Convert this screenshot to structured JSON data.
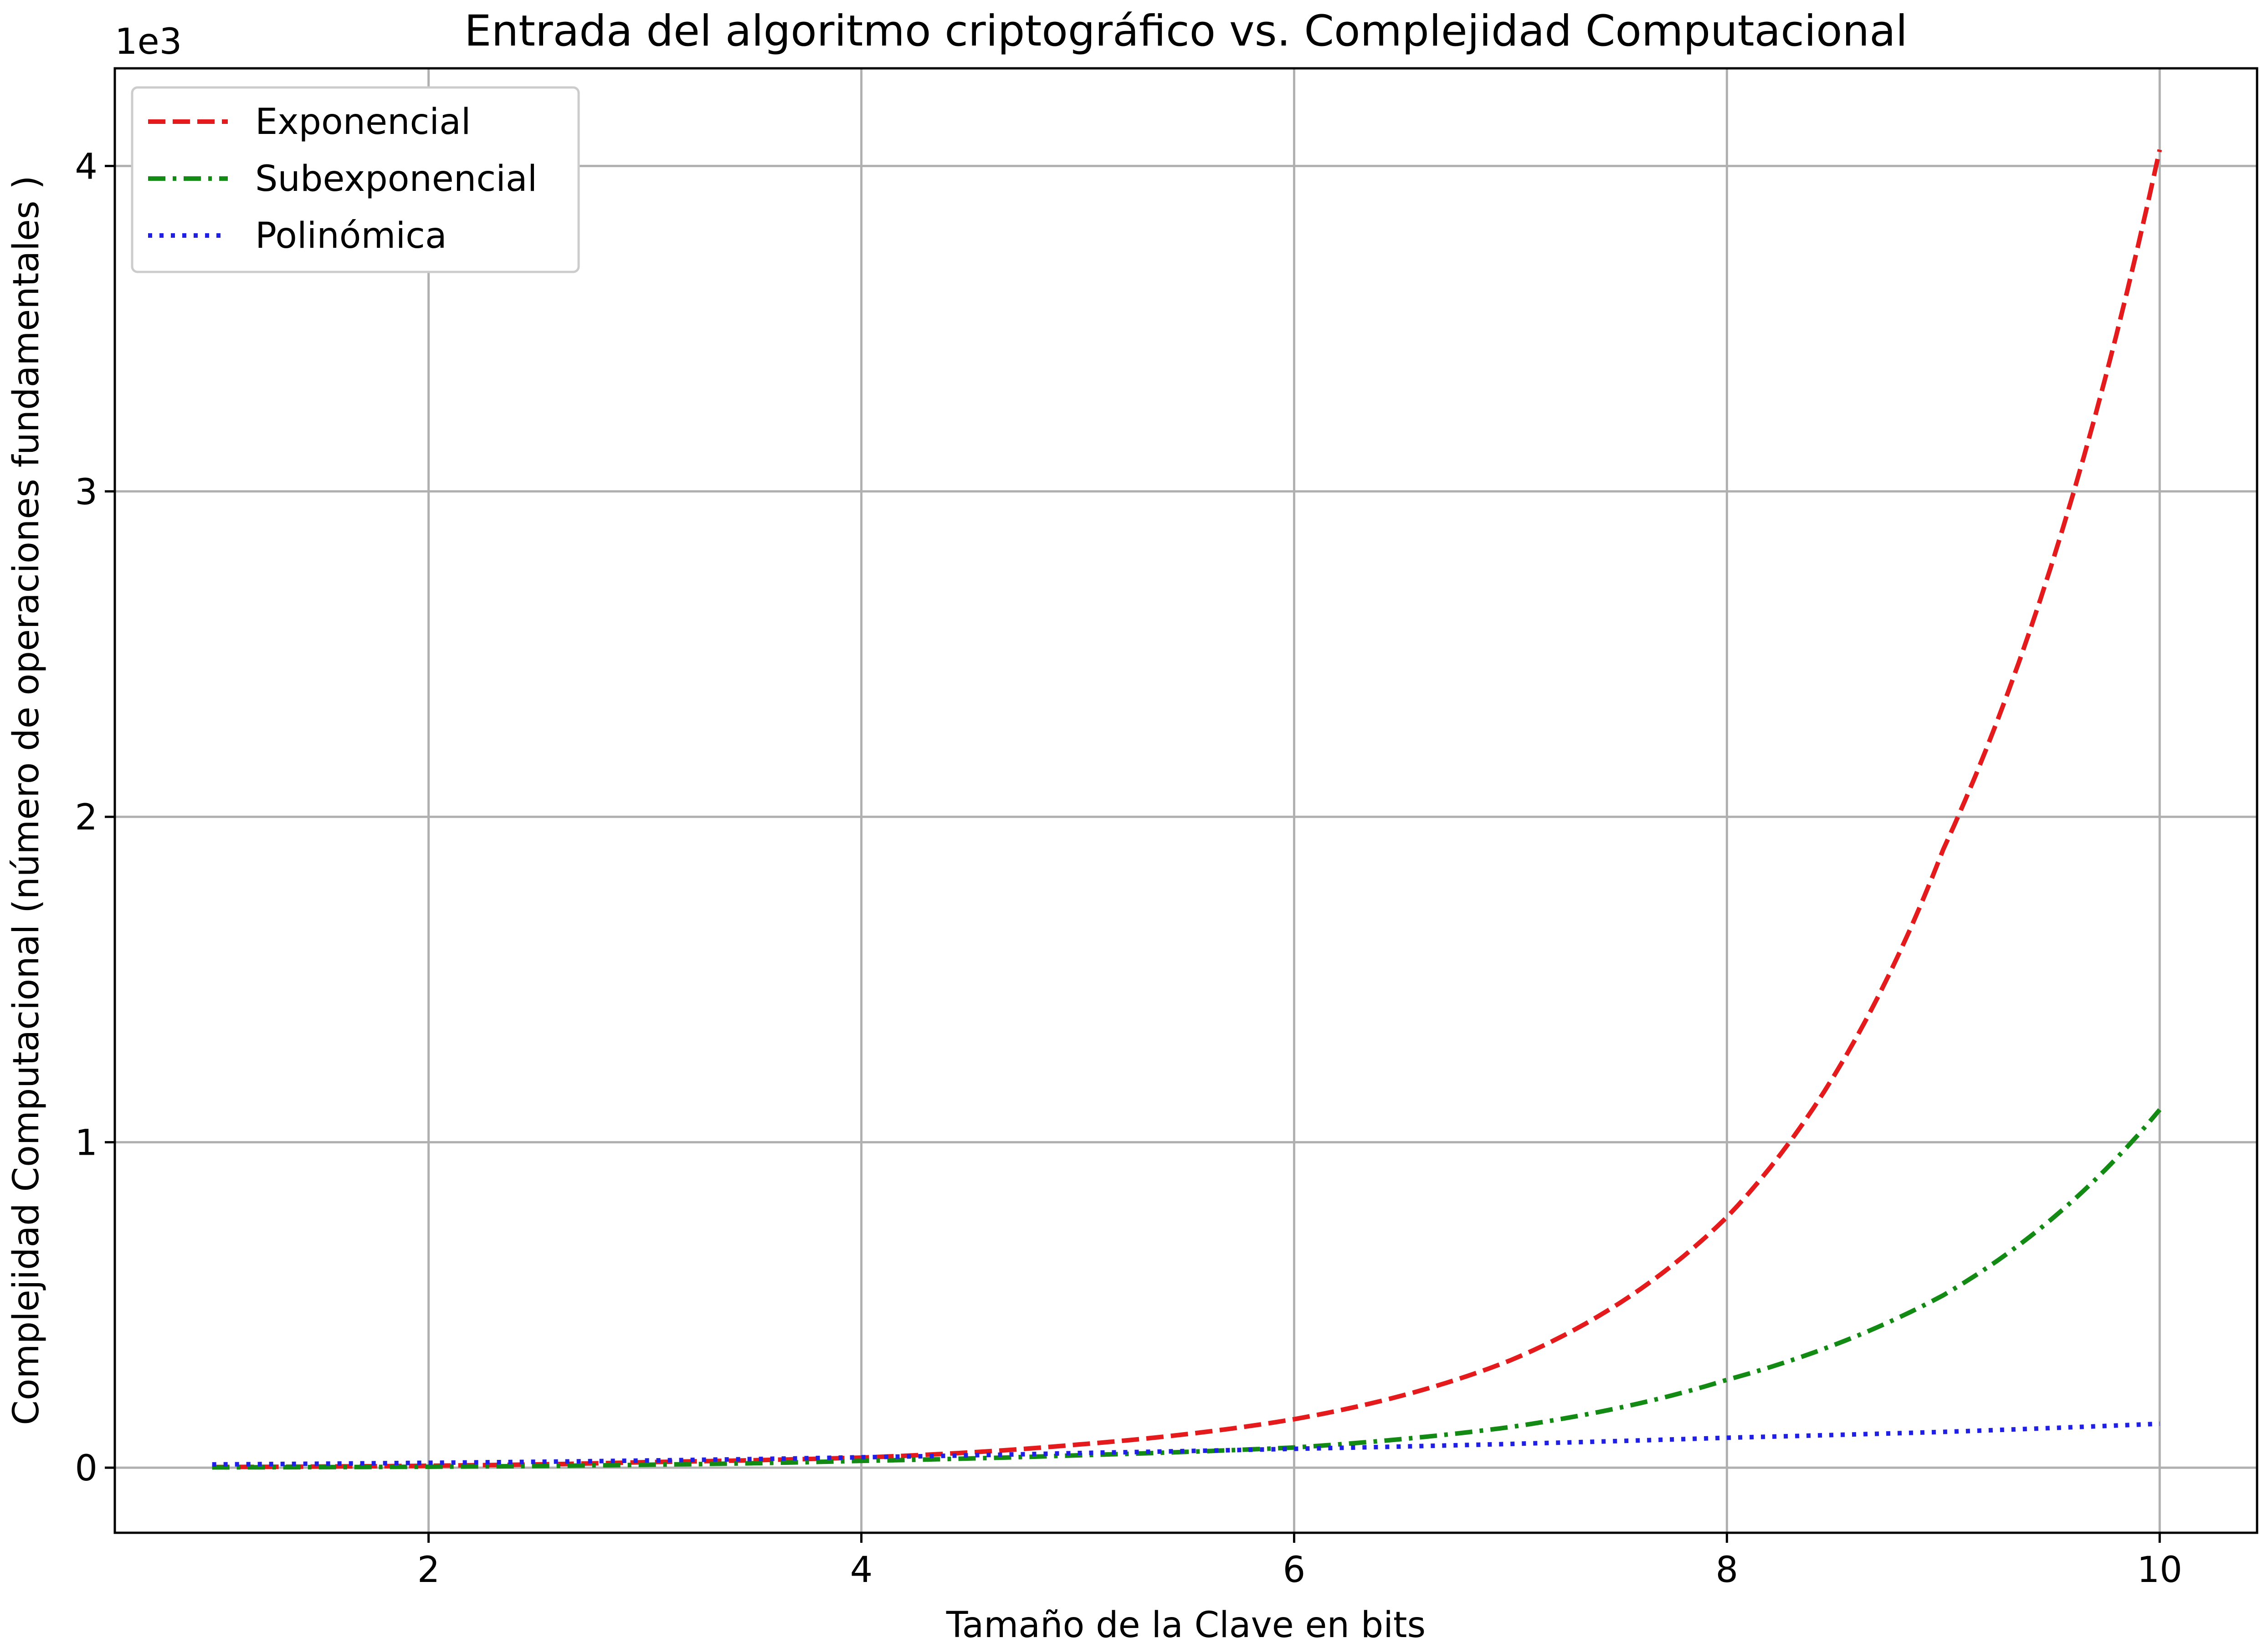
{
  "chart_data": {
    "type": "line",
    "title": "Entrada del algoritmo criptográfico vs. Complejidad Computacional",
    "xlabel": "Tamaño de la Clave en bits",
    "ylabel": "Complejidad Computacional (número de operaciones fundamentales )",
    "y_offset_label": "1e3",
    "xlim": [
      0.55,
      10.45
    ],
    "ylim": [
      -0.2,
      4.3
    ],
    "xticks": [
      2,
      4,
      6,
      8,
      10
    ],
    "xtick_labels": [
      "2",
      "4",
      "6",
      "8",
      "10"
    ],
    "yticks": [
      0,
      1,
      2,
      3,
      4
    ],
    "ytick_labels": [
      "0",
      "1",
      "2",
      "3",
      "4"
    ],
    "grid": true,
    "legend_placement": "top-left",
    "x": [
      1,
      2,
      3,
      4,
      5,
      6,
      7,
      8,
      9,
      10
    ],
    "series": [
      {
        "name": "Exponencial",
        "color": "#e41a1c",
        "dash": "dashed",
        "values": [
          0.002,
          0.006,
          0.017,
          0.031,
          0.071,
          0.149,
          0.33,
          0.77,
          1.9,
          4.05
        ]
      },
      {
        "name": "Subexponencial",
        "color": "#138a13",
        "dash": "dashdot",
        "values": [
          0.001,
          0.003,
          0.009,
          0.021,
          0.038,
          0.062,
          0.125,
          0.27,
          0.53,
          1.1
        ]
      },
      {
        "name": "Polinómica",
        "color": "#1f1fe6",
        "dash": "dotted",
        "values": [
          0.01,
          0.015,
          0.022,
          0.032,
          0.045,
          0.058,
          0.073,
          0.092,
          0.11,
          0.135
        ]
      }
    ]
  }
}
